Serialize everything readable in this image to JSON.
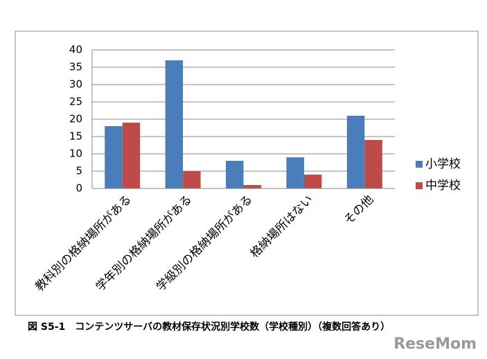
{
  "chart_data": {
    "type": "bar",
    "categories": [
      "教科別の格納場所がある",
      "学年別の格納場所がある",
      "学級別の格納場所がある",
      "格納場所はない",
      "その他"
    ],
    "series": [
      {
        "name": "小学校",
        "color": "#4a7ebb",
        "values": [
          18,
          37,
          8,
          9,
          21
        ]
      },
      {
        "name": "中学校",
        "color": "#be4b48",
        "values": [
          19,
          5,
          1,
          4,
          14
        ]
      }
    ],
    "ylim": [
      0,
      40
    ],
    "yticks": [
      0,
      5,
      10,
      15,
      20,
      25,
      30,
      35,
      40
    ],
    "grid": true,
    "legend": "right",
    "caption": "図 S5-1　コンテンツサーバの教材保存状況別学校数（学校種別）（複数回答あり）",
    "watermark": "ReseMom"
  }
}
